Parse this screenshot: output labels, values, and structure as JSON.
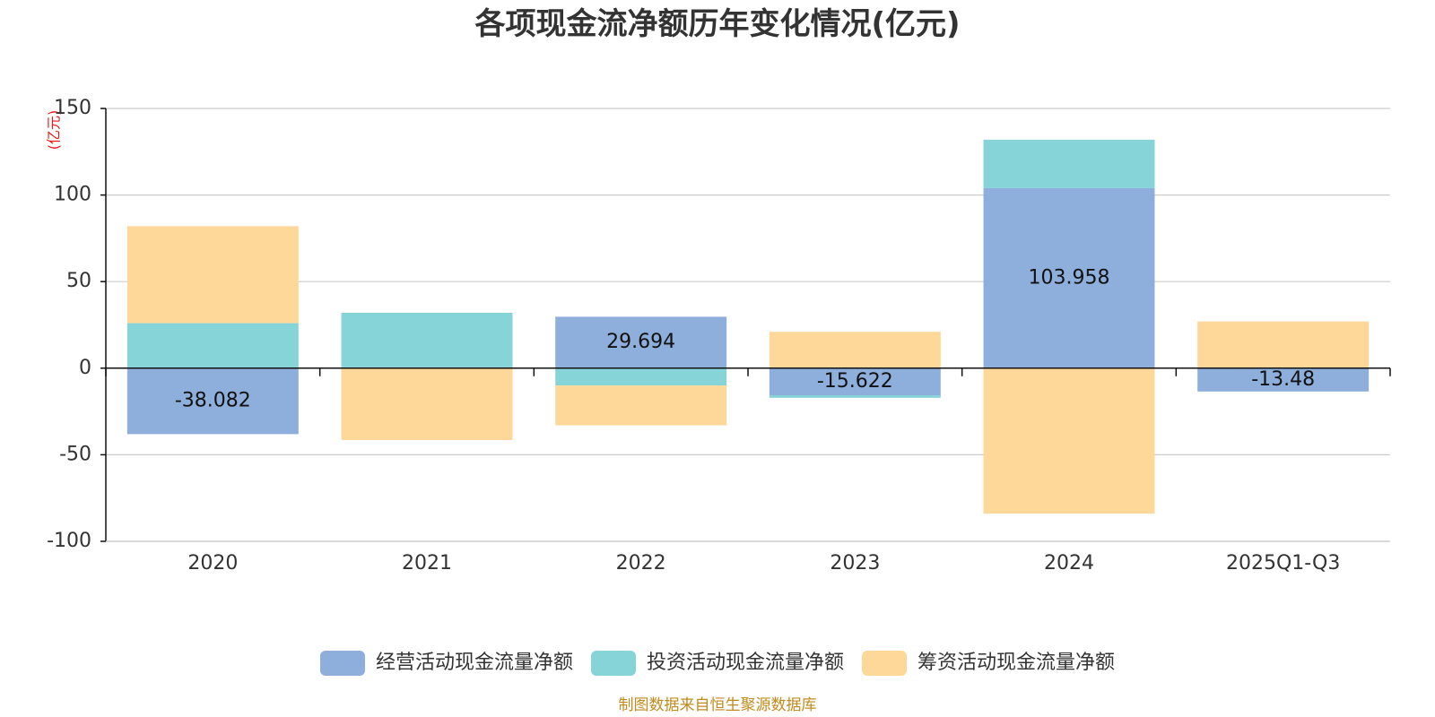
{
  "chart_data": {
    "type": "bar",
    "stacked": true,
    "title": "各项现金流净额历年变化情况(亿元)",
    "unit_label": "(亿元)",
    "source_note": "制图数据来自恒生聚源数据库",
    "categories": [
      "2020",
      "2021",
      "2022",
      "2023",
      "2024",
      "2025Q1-Q3"
    ],
    "ylim": [
      -100,
      150
    ],
    "yticks": [
      150,
      100,
      50,
      0,
      -50,
      -100
    ],
    "grid": true,
    "legend_position": "bottom-center",
    "colors": {
      "operating": "#8eaedb",
      "investing": "#86d4d8",
      "financing": "#fed899",
      "unit_label": "#e8191b",
      "source_note": "#c08a1e",
      "grid": "#cccccc",
      "axis": "#111111"
    },
    "series": [
      {
        "key": "operating",
        "name": "经营活动现金流量净额",
        "values": [
          -38.082,
          0.5,
          29.694,
          -15.622,
          103.958,
          -13.48
        ],
        "labels": [
          "-38.082",
          "",
          "29.694",
          "-15.622",
          "103.958",
          "-13.48"
        ]
      },
      {
        "key": "investing",
        "name": "投资活动现金流量净额",
        "values": [
          26,
          31.5,
          -10,
          -1.5,
          28,
          0
        ]
      },
      {
        "key": "financing",
        "name": "筹资活动现金流量净额",
        "values": [
          56,
          -41.5,
          -23,
          21,
          -84,
          27
        ]
      }
    ]
  }
}
